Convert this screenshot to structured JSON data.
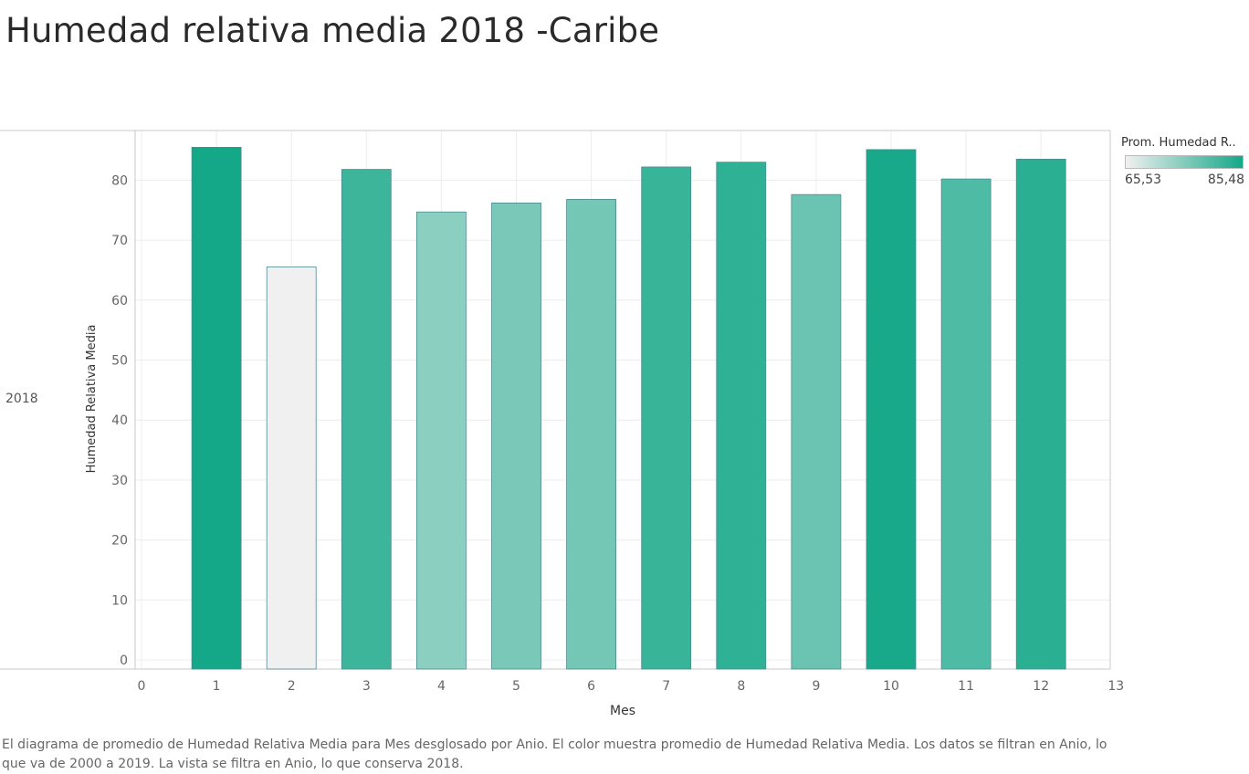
{
  "title": "Humedad relativa media 2018 -Caribe",
  "row_label": "2018",
  "legend": {
    "title": "Prom. Humedad R..",
    "min_label": "65,53",
    "max_label": "85,48",
    "min_value": 65.53,
    "max_value": 85.48,
    "color_low": "#f0f0f0",
    "color_high": "#14a888"
  },
  "caption": "El diagrama de promedio de Humedad Relativa Media para Mes desglosado por Anio.  El color muestra promedio de Humedad Relativa Media. Los datos se filtran en Anio, lo que va de 2000 a 2019. La vista se filtra en Anio, lo que conserva 2018.",
  "chart_data": {
    "type": "bar",
    "title": "Humedad relativa media 2018 -Caribe",
    "xlabel": "Mes",
    "ylabel": "Humedad Relativa Media",
    "x": [
      1,
      2,
      3,
      4,
      5,
      6,
      7,
      8,
      9,
      10,
      11,
      12
    ],
    "values": [
      85.48,
      65.53,
      81.8,
      74.7,
      76.2,
      76.8,
      82.2,
      83.0,
      77.6,
      85.1,
      80.2,
      83.5
    ],
    "xlim": [
      0,
      13
    ],
    "ylim": [
      0,
      90
    ],
    "xticks": [
      0,
      1,
      2,
      3,
      4,
      5,
      6,
      7,
      8,
      9,
      10,
      11,
      12,
      13
    ],
    "yticks": [
      0,
      10,
      20,
      30,
      40,
      50,
      60,
      70,
      80
    ],
    "grid": true,
    "legend_position": "top-right",
    "bar_stroke": "#4e8a8f",
    "grid_color": "#ececec",
    "axis_color": "#c8c8c8"
  }
}
